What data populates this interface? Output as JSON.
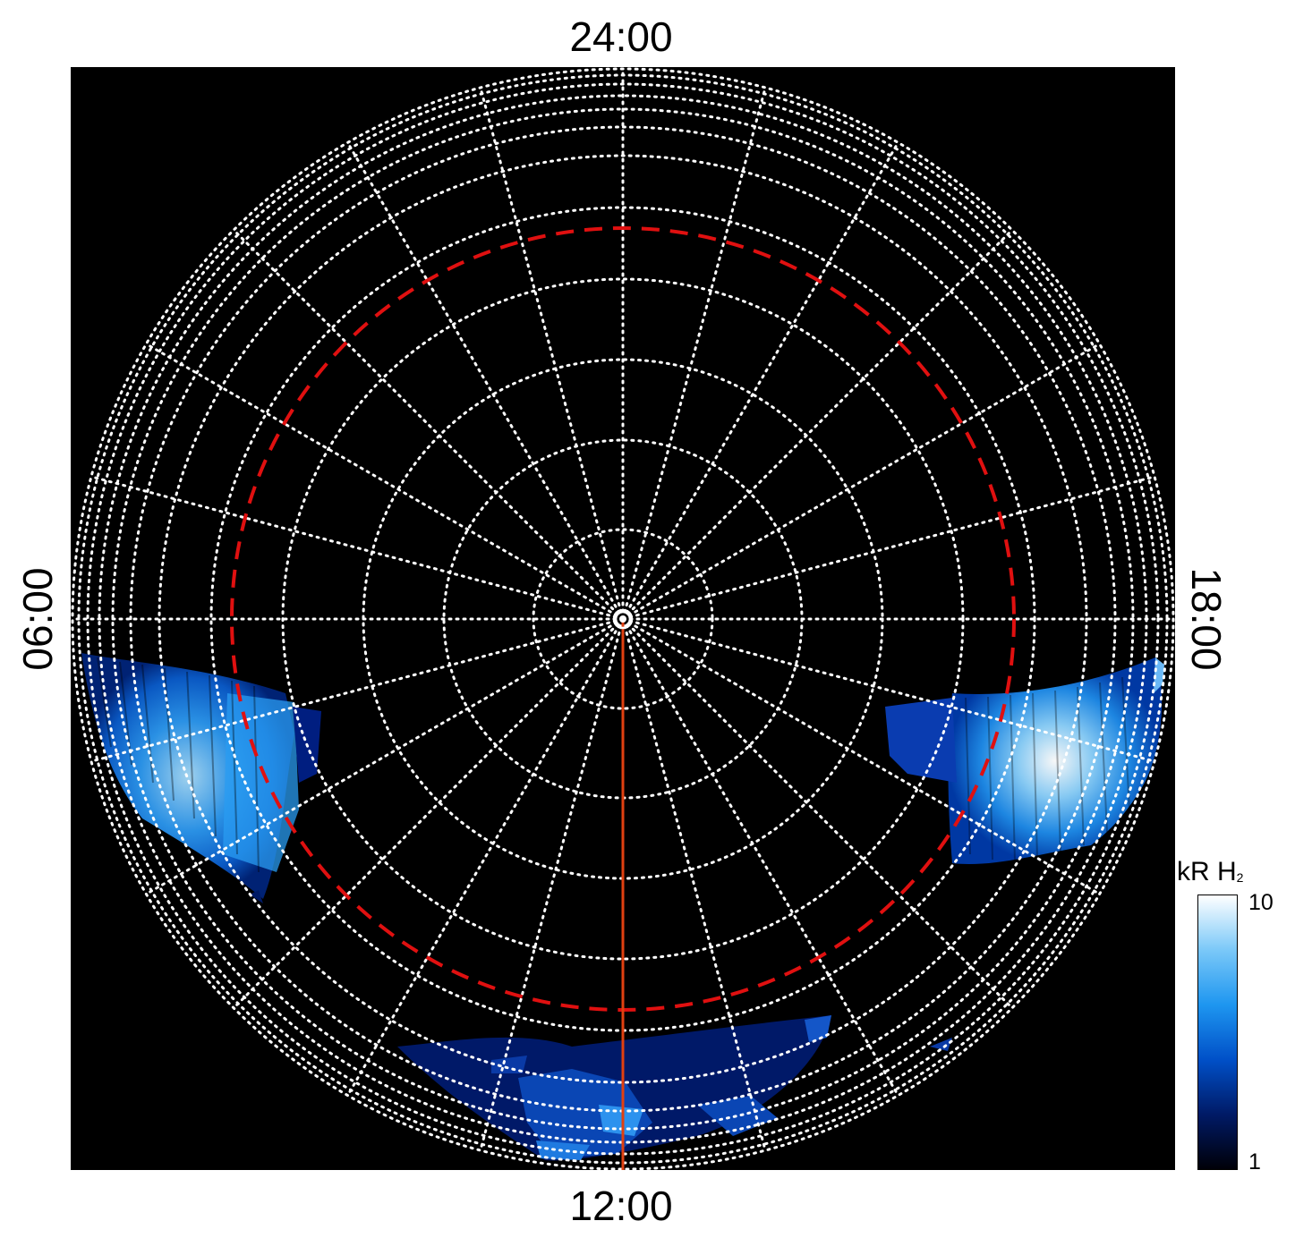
{
  "map": {
    "local_time_labels": {
      "top": "24:00",
      "bottom": "12:00",
      "left": "06:00",
      "right": "18:00"
    },
    "projection": "polar",
    "grid": {
      "style": "dotted",
      "color": "#ffffff",
      "meridian_count": 24,
      "latitude_circle_count": 12
    },
    "reference_circle": {
      "style": "dashed",
      "color": "#e01010"
    },
    "noon_meridian": {
      "color": "#e04010"
    },
    "background_color": "#000000"
  },
  "colorbar": {
    "title_main": "kR H",
    "title_sub": "2",
    "max_label": "10",
    "min_label": "1",
    "scale": "log",
    "colors": [
      "#000008",
      "#001a66",
      "#0050c8",
      "#1e96f0",
      "#7ac8f8",
      "#ffffff"
    ]
  }
}
